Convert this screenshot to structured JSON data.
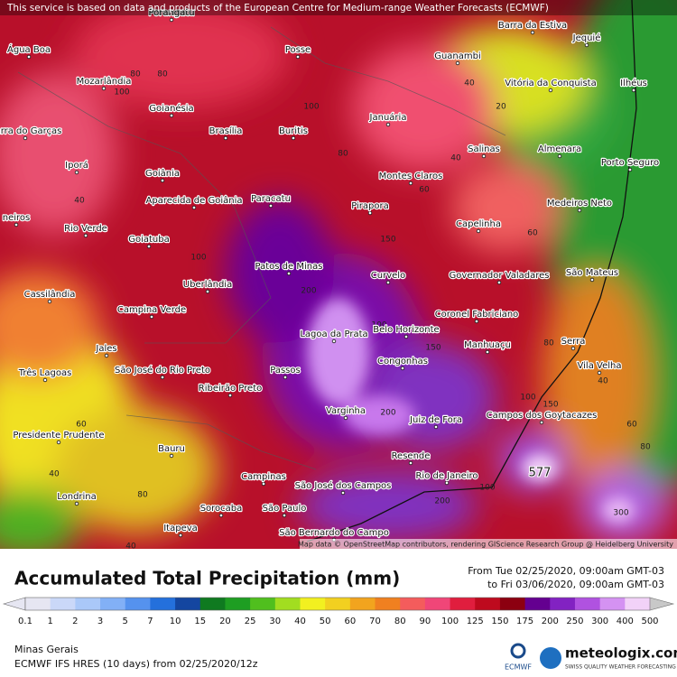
{
  "header": {
    "notice": "This service is based on data and products of the European Centre for Medium-range Weather Forecasts (ECMWF)"
  },
  "map": {
    "cities": [
      "Porangatu",
      "Água Boa",
      "Posse",
      "Barra da Estiva",
      "Jequié",
      "Guanambi",
      "Mozarlândia",
      "Vitória da Conquista",
      "Ilhéus",
      "Goianésia",
      "Januária",
      "Barra do Garças",
      "Brasília",
      "Buritis",
      "Salinas",
      "Almenara",
      "Iporá",
      "Goiânia",
      "Montes Claros",
      "Porto Seguro",
      "Aparecida de Goiânia",
      "Paracatu",
      "Pirapora",
      "Medeiros Neto",
      "neiros",
      "Capelinha",
      "Rio Verde",
      "Goiatuba",
      "Patos de Minas",
      "Curvelo",
      "Governador Valadares",
      "São Mateus",
      "Uberlândia",
      "Cassilândia",
      "Campina Verde",
      "Coronel Fabriciano",
      "Lagoa da Prata",
      "Belo Horizonte",
      "Manhuaçu",
      "Serra",
      "Jales",
      "São José do Rio Preto",
      "Passos",
      "Congonhas",
      "Vila Velha",
      "Três Lagoas",
      "Ribeirão Preto",
      "Campos dos Goytacazes",
      "Varginha",
      "Juiz de Fora",
      "Presidente Prudente",
      "Bauru",
      "Resende",
      "Campinas",
      "São José dos Campos",
      "Rio de Janeiro",
      "Londrina",
      "Sorocaba",
      "São Paulo",
      "São Bernardo do Campo",
      "Itapeva"
    ],
    "contour_labels": [
      80,
      100,
      80,
      100,
      40,
      20,
      60,
      100,
      40,
      60,
      80,
      40,
      100,
      150,
      200,
      200,
      150,
      100,
      80,
      40,
      60,
      40,
      80,
      100,
      200,
      300,
      150,
      60,
      80,
      40
    ],
    "max_label": 577,
    "attribution": "Map data © OpenStreetMap contributors, rendering GIScience Research Group @ Heidelberg University"
  },
  "legend": {
    "title": "Accumulated Total Precipitation (mm)",
    "from": "From Tue 02/25/2020, 09:00am GMT-03",
    "to": "to Fri 03/06/2020, 09:00am GMT-03",
    "values": [
      0.1,
      1,
      2,
      3,
      5,
      7,
      10,
      15,
      20,
      25,
      30,
      40,
      50,
      60,
      70,
      80,
      90,
      100,
      125,
      150,
      175,
      200,
      250,
      300,
      400,
      500
    ],
    "colors": [
      "#e6e6f2",
      "#cad8f8",
      "#aac8f8",
      "#82b0f6",
      "#5592ee",
      "#2470dc",
      "#1446a0",
      "#0f7a20",
      "#1e9e22",
      "#50bf1e",
      "#a2dd20",
      "#f2f020",
      "#f2d020",
      "#f2a41e",
      "#f08020",
      "#f45c5c",
      "#f04678",
      "#e01e3e",
      "#be0a1e",
      "#8c0010",
      "#640090",
      "#8222c2",
      "#b052e0",
      "#d492f2",
      "#f2d2f8",
      "#c8c8c8"
    ]
  },
  "footer": {
    "region": "Minas Gerais",
    "model": "ECMWF IFS HRES (10 days) from 02/25/2020/12z",
    "ecmwf": "ECMWF",
    "brand": "meteologix.com",
    "slogan": "SWISS QUALITY WEATHER FORECASTING"
  }
}
